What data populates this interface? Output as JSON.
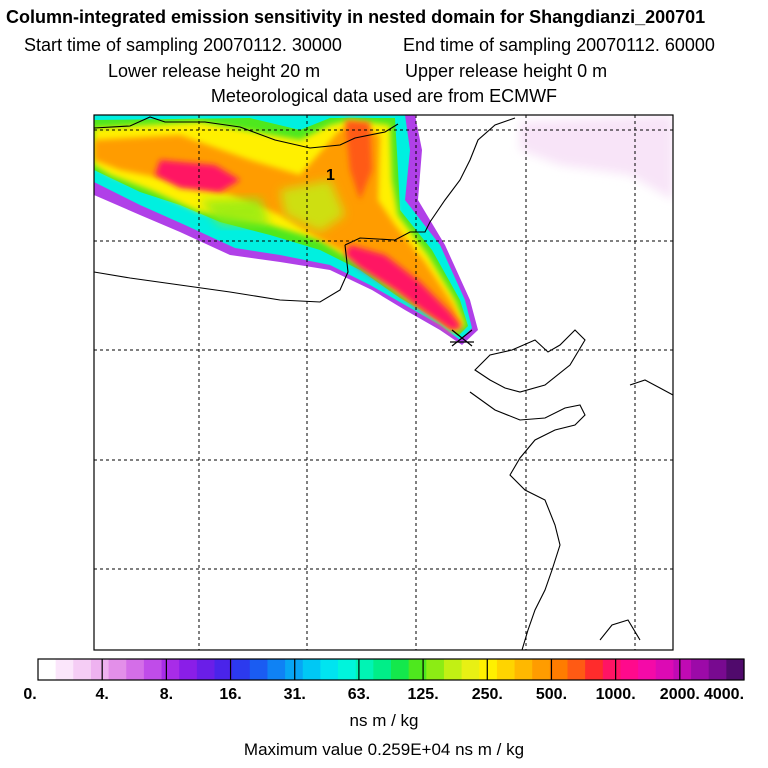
{
  "header": {
    "title": "Column-integrated emission sensitivity in nested domain for Shangdianzi_200701",
    "start_label": "Start time of sampling 20070112. 30000",
    "end_label": "End time of sampling 20070112. 60000",
    "lower_label": "Lower release height   20 m",
    "upper_label": "Upper release height    0 m",
    "met_label": "Meteorological data used are from ECMWF"
  },
  "map": {
    "marker_label": "1"
  },
  "colorbar": {
    "tick_labels": [
      "0.",
      "4.",
      "8.",
      "16.",
      "31.",
      "63.",
      "125.",
      "250.",
      "500.",
      "1000.",
      "2000.",
      "4000."
    ],
    "colors": [
      "#ffffff",
      "#fbe6fb",
      "#f5cdf5",
      "#eeb2f0",
      "#e38fe9",
      "#d46ee8",
      "#c04ce9",
      "#a82ce8",
      "#8a1ee8",
      "#6a1ee8",
      "#4a24ea",
      "#2c3aee",
      "#1a5cf2",
      "#0f82f4",
      "#07a6f4",
      "#00c8f4",
      "#00e4f0",
      "#00f4dc",
      "#00f4b4",
      "#00ee88",
      "#14e84c",
      "#4ee81e",
      "#8cec14",
      "#c2f014",
      "#e8f014",
      "#fff000",
      "#ffd400",
      "#ffb800",
      "#ff9c00",
      "#ff7c00",
      "#ff5a14",
      "#ff2c2c",
      "#ff1464",
      "#ff0a8c",
      "#f40aa8",
      "#dc0ab4",
      "#c00ab4",
      "#9c0aa8",
      "#780a90",
      "#500a6c"
    ],
    "units": "ns m / kg"
  },
  "footer": {
    "max_value": "Maximum value  0.259E+04 ns m / kg"
  }
}
